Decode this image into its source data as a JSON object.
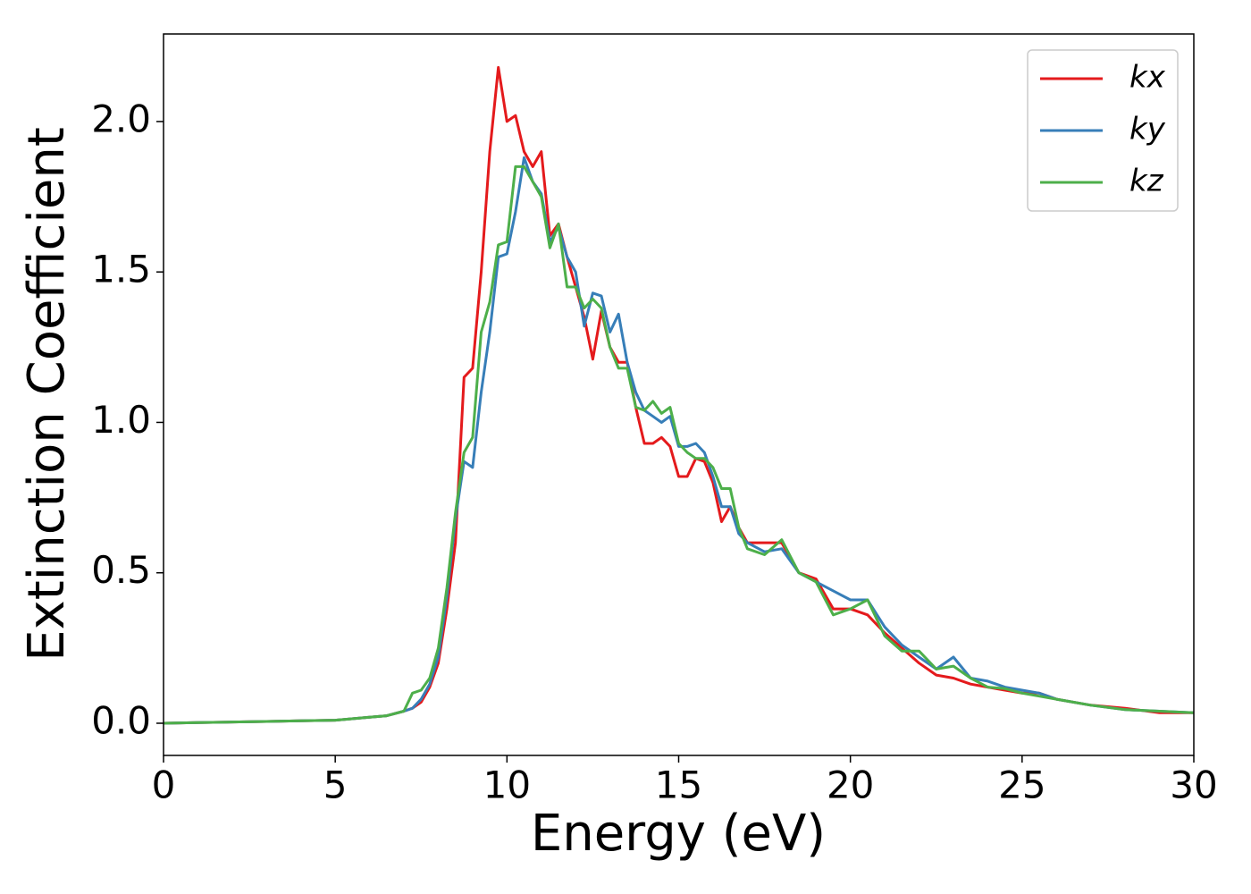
{
  "chart_data": {
    "type": "line",
    "xlabel": "Energy (eV)",
    "ylabel": "Extinction Coefficient",
    "x": [
      0,
      1,
      2,
      3,
      4,
      5,
      6,
      6.5,
      7,
      7.25,
      7.5,
      7.75,
      8,
      8.25,
      8.5,
      8.75,
      9,
      9.25,
      9.5,
      9.75,
      10,
      10.25,
      10.5,
      10.75,
      11,
      11.25,
      11.5,
      11.75,
      12,
      12.25,
      12.5,
      12.75,
      13,
      13.25,
      13.5,
      13.75,
      14,
      14.25,
      14.5,
      14.75,
      15,
      15.25,
      15.5,
      15.75,
      16,
      16.25,
      16.5,
      16.75,
      17,
      17.5,
      18,
      18.5,
      19,
      19.5,
      20,
      20.5,
      21,
      21.5,
      22,
      22.5,
      23,
      23.5,
      24,
      24.5,
      25,
      25.5,
      26,
      27,
      28,
      29,
      30
    ],
    "series": [
      {
        "name": "kx",
        "color": "#e41a1c",
        "values": [
          0,
          0.002,
          0.004,
          0.006,
          0.008,
          0.01,
          0.02,
          0.025,
          0.04,
          0.05,
          0.07,
          0.12,
          0.2,
          0.38,
          0.6,
          1.15,
          1.18,
          1.5,
          1.9,
          2.18,
          2.0,
          2.02,
          1.9,
          1.85,
          1.9,
          1.62,
          1.66,
          1.55,
          1.45,
          1.35,
          1.21,
          1.37,
          1.25,
          1.2,
          1.2,
          1.05,
          0.93,
          0.93,
          0.95,
          0.92,
          0.82,
          0.82,
          0.88,
          0.87,
          0.8,
          0.67,
          0.72,
          0.65,
          0.6,
          0.6,
          0.6,
          0.5,
          0.48,
          0.38,
          0.38,
          0.36,
          0.3,
          0.25,
          0.2,
          0.16,
          0.15,
          0.13,
          0.12,
          0.11,
          0.1,
          0.1,
          0.08,
          0.06,
          0.05,
          0.035,
          0.035
        ]
      },
      {
        "name": "ky",
        "color": "#377eb8",
        "values": [
          0,
          0.002,
          0.004,
          0.006,
          0.008,
          0.01,
          0.02,
          0.025,
          0.04,
          0.05,
          0.08,
          0.13,
          0.22,
          0.42,
          0.68,
          0.87,
          0.85,
          1.1,
          1.3,
          1.55,
          1.56,
          1.7,
          1.88,
          1.8,
          1.76,
          1.6,
          1.65,
          1.55,
          1.5,
          1.32,
          1.43,
          1.42,
          1.3,
          1.36,
          1.2,
          1.1,
          1.04,
          1.02,
          1.0,
          1.02,
          0.92,
          0.92,
          0.93,
          0.9,
          0.82,
          0.72,
          0.72,
          0.63,
          0.6,
          0.57,
          0.58,
          0.5,
          0.47,
          0.44,
          0.41,
          0.41,
          0.32,
          0.26,
          0.22,
          0.18,
          0.22,
          0.15,
          0.14,
          0.12,
          0.11,
          0.1,
          0.08,
          0.06,
          0.045,
          0.04,
          0.035
        ]
      },
      {
        "name": "kz",
        "color": "#4daf4a",
        "values": [
          0,
          0.002,
          0.004,
          0.006,
          0.008,
          0.01,
          0.02,
          0.025,
          0.04,
          0.1,
          0.11,
          0.15,
          0.25,
          0.45,
          0.7,
          0.9,
          0.95,
          1.3,
          1.4,
          1.59,
          1.6,
          1.85,
          1.85,
          1.8,
          1.75,
          1.58,
          1.66,
          1.45,
          1.45,
          1.38,
          1.41,
          1.38,
          1.25,
          1.18,
          1.18,
          1.05,
          1.04,
          1.07,
          1.03,
          1.05,
          0.93,
          0.9,
          0.88,
          0.88,
          0.85,
          0.78,
          0.78,
          0.65,
          0.58,
          0.56,
          0.61,
          0.5,
          0.47,
          0.36,
          0.38,
          0.41,
          0.29,
          0.24,
          0.24,
          0.18,
          0.19,
          0.15,
          0.12,
          0.115,
          0.1,
          0.09,
          0.08,
          0.06,
          0.045,
          0.04,
          0.035
        ]
      }
    ],
    "xlim": [
      0,
      30
    ],
    "xticks": [
      0,
      5,
      10,
      15,
      20,
      25,
      30
    ],
    "ylim": [
      -0.107,
      2.291
    ],
    "yticks": [
      {
        "value": 0,
        "label": "0.0"
      },
      0.5,
      {
        "value": 1,
        "label": "1.0"
      },
      1.5,
      {
        "value": 2,
        "label": "2.0"
      }
    ],
    "legend": "upper right"
  }
}
